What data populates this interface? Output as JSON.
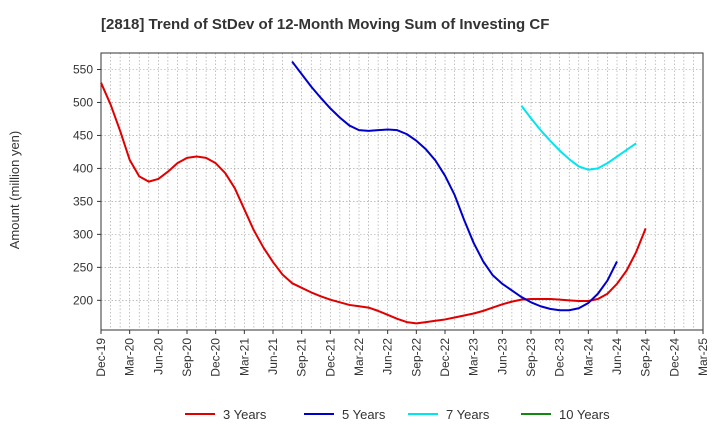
{
  "chart_data": {
    "type": "line",
    "title": "[2818]  Trend of StDev of 12-Month Moving Sum of Investing CF",
    "ylabel": "Amount (million yen)",
    "xlabel": "",
    "ylim": [
      155,
      575
    ],
    "yticks": [
      200,
      250,
      300,
      350,
      400,
      450,
      500,
      550
    ],
    "xticks": [
      "Dec-19",
      "Mar-20",
      "Jun-20",
      "Sep-20",
      "Dec-20",
      "Mar-21",
      "Jun-21",
      "Sep-21",
      "Dec-21",
      "Mar-22",
      "Jun-22",
      "Sep-22",
      "Dec-22",
      "Mar-23",
      "Jun-23",
      "Sep-23",
      "Dec-23",
      "Mar-24",
      "Jun-24",
      "Sep-24",
      "Dec-24",
      "Mar-25"
    ],
    "grid": true,
    "legend_position": "bottom",
    "series": [
      {
        "name": "3 Years",
        "color": "#e00000",
        "points": [
          [
            0,
            530
          ],
          [
            1,
            497
          ],
          [
            2,
            457
          ],
          [
            3,
            413
          ],
          [
            4,
            388
          ],
          [
            5,
            380
          ],
          [
            6,
            384
          ],
          [
            7,
            395
          ],
          [
            8,
            408
          ],
          [
            9,
            416
          ],
          [
            10,
            418
          ],
          [
            11,
            416
          ],
          [
            12,
            408
          ],
          [
            13,
            393
          ],
          [
            14,
            370
          ],
          [
            15,
            338
          ],
          [
            16,
            306
          ],
          [
            17,
            280
          ],
          [
            18,
            258
          ],
          [
            19,
            239
          ],
          [
            20,
            226
          ],
          [
            21,
            219
          ],
          [
            22,
            212
          ],
          [
            23,
            206
          ],
          [
            24,
            201
          ],
          [
            25,
            197
          ],
          [
            26,
            193
          ],
          [
            27,
            191
          ],
          [
            28,
            189
          ],
          [
            29,
            184
          ],
          [
            30,
            178
          ],
          [
            31,
            172
          ],
          [
            32,
            167
          ],
          [
            33,
            165
          ],
          [
            34,
            167
          ],
          [
            35,
            169
          ],
          [
            36,
            171
          ],
          [
            37,
            174
          ],
          [
            38,
            177
          ],
          [
            39,
            180
          ],
          [
            40,
            184
          ],
          [
            41,
            189
          ],
          [
            42,
            194
          ],
          [
            43,
            198
          ],
          [
            44,
            201
          ],
          [
            45,
            202
          ],
          [
            46,
            202
          ],
          [
            47,
            202
          ],
          [
            48,
            201
          ],
          [
            49,
            200
          ],
          [
            50,
            199
          ],
          [
            51,
            199
          ],
          [
            52,
            202
          ],
          [
            53,
            210
          ],
          [
            54,
            225
          ],
          [
            55,
            245
          ],
          [
            56,
            273
          ],
          [
            57,
            309
          ]
        ]
      },
      {
        "name": "5 Years",
        "color": "#0000cc",
        "points": [
          [
            20,
            562
          ],
          [
            21,
            543
          ],
          [
            22,
            524
          ],
          [
            23,
            507
          ],
          [
            24,
            491
          ],
          [
            25,
            477
          ],
          [
            26,
            465
          ],
          [
            27,
            458
          ],
          [
            28,
            457
          ],
          [
            29,
            458
          ],
          [
            30,
            459
          ],
          [
            31,
            458
          ],
          [
            32,
            452
          ],
          [
            33,
            442
          ],
          [
            34,
            429
          ],
          [
            35,
            412
          ],
          [
            36,
            389
          ],
          [
            37,
            360
          ],
          [
            38,
            322
          ],
          [
            39,
            287
          ],
          [
            40,
            259
          ],
          [
            41,
            238
          ],
          [
            42,
            225
          ],
          [
            43,
            215
          ],
          [
            44,
            205
          ],
          [
            45,
            197
          ],
          [
            46,
            191
          ],
          [
            47,
            187
          ],
          [
            48,
            185
          ],
          [
            49,
            185
          ],
          [
            50,
            188
          ],
          [
            51,
            196
          ],
          [
            52,
            210
          ],
          [
            53,
            230
          ],
          [
            54,
            259
          ]
        ]
      },
      {
        "name": "7 Years",
        "color": "#00e5ee",
        "points": [
          [
            44,
            495
          ],
          [
            45,
            476
          ],
          [
            46,
            458
          ],
          [
            47,
            442
          ],
          [
            48,
            427
          ],
          [
            49,
            414
          ],
          [
            50,
            403
          ],
          [
            51,
            398
          ],
          [
            52,
            400
          ],
          [
            53,
            408
          ],
          [
            54,
            418
          ],
          [
            55,
            428
          ],
          [
            56,
            438
          ]
        ]
      },
      {
        "name": "10 Years",
        "color": "#118811",
        "points": []
      }
    ]
  }
}
